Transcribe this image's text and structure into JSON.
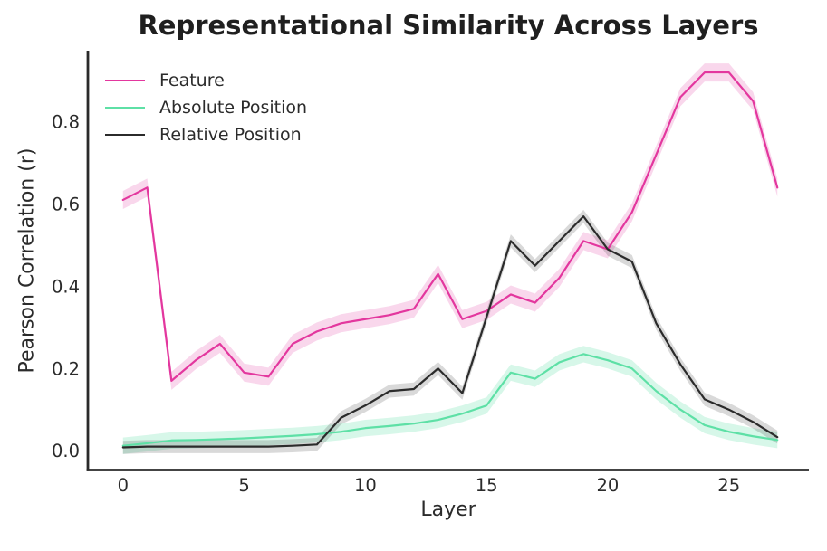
{
  "chart_data": {
    "type": "line",
    "title": "Representational Similarity Across Layers",
    "xlabel": "Layer",
    "ylabel": "Pearson Correlation (r)",
    "x": [
      0,
      1,
      2,
      3,
      4,
      5,
      6,
      7,
      8,
      9,
      10,
      11,
      12,
      13,
      14,
      15,
      16,
      17,
      18,
      19,
      20,
      21,
      22,
      23,
      24,
      25,
      26,
      27
    ],
    "x_ticks": [
      0,
      5,
      10,
      15,
      20,
      25
    ],
    "y_ticks": [
      "0.0",
      "0.2",
      "0.4",
      "0.6",
      "0.8"
    ],
    "y_tick_values": [
      0.0,
      0.2,
      0.4,
      0.6,
      0.8
    ],
    "xlim": [
      -1.45,
      28.3
    ],
    "ylim": [
      -0.047,
      0.973
    ],
    "grid": false,
    "legend_position": "upper-left",
    "series": [
      {
        "name": "Feature",
        "color": "#e3379e",
        "band_opacity": 0.2,
        "band_halfwidth": 0.022,
        "values": [
          0.61,
          0.64,
          0.17,
          0.22,
          0.26,
          0.19,
          0.18,
          0.26,
          0.29,
          0.31,
          0.32,
          0.33,
          0.345,
          0.43,
          0.32,
          0.34,
          0.38,
          0.36,
          0.42,
          0.51,
          0.49,
          0.58,
          0.72,
          0.86,
          0.92,
          0.92,
          0.85,
          0.64
        ]
      },
      {
        "name": "Absolute Position",
        "color": "#5ee0a6",
        "band_opacity": 0.25,
        "band_halfwidth": 0.02,
        "values": [
          0.012,
          0.018,
          0.025,
          0.026,
          0.028,
          0.03,
          0.033,
          0.036,
          0.04,
          0.046,
          0.055,
          0.06,
          0.066,
          0.075,
          0.09,
          0.11,
          0.19,
          0.175,
          0.215,
          0.235,
          0.22,
          0.2,
          0.145,
          0.1,
          0.062,
          0.046,
          0.035,
          0.026
        ]
      },
      {
        "name": "Relative Position",
        "color": "#2b2b2b",
        "band_opacity": 0.18,
        "band_halfwidth": 0.016,
        "values": [
          0.008,
          0.01,
          0.01,
          0.01,
          0.01,
          0.01,
          0.01,
          0.012,
          0.015,
          0.08,
          0.11,
          0.145,
          0.15,
          0.2,
          0.14,
          0.325,
          0.51,
          0.45,
          0.51,
          0.57,
          0.49,
          0.46,
          0.31,
          0.21,
          0.125,
          0.1,
          0.07,
          0.033
        ]
      }
    ]
  },
  "colors": {
    "background": "#ffffff",
    "spine": "#2a2a2a",
    "tick_text": "#2b2b2b"
  }
}
